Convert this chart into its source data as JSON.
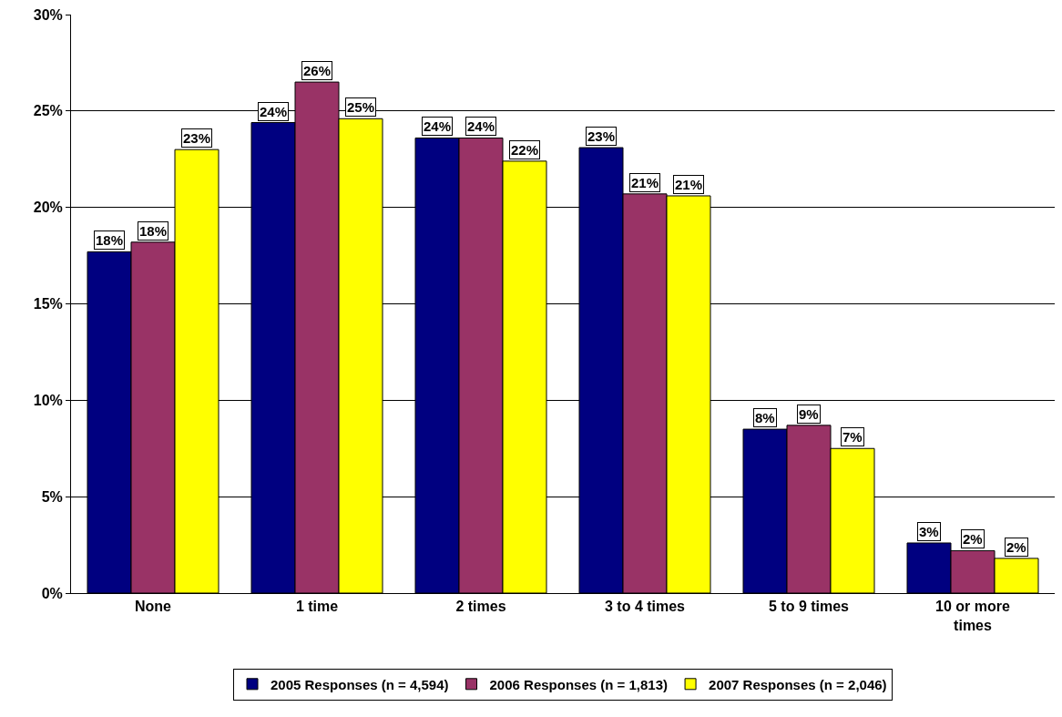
{
  "chart_data": {
    "type": "bar",
    "categories": [
      "None",
      "1 time",
      "2 times",
      "3 to 4 times",
      "5 to 9 times",
      "10 or more times"
    ],
    "series": [
      {
        "name": "2005 Responses (n = 4,594)",
        "color": "#000080",
        "values": [
          17.7,
          24.4,
          23.6,
          23.1,
          8.5,
          2.6
        ],
        "value_labels": [
          "18%",
          "24%",
          "24%",
          "23%",
          "8%",
          "3%"
        ]
      },
      {
        "name": "2006 Responses (n = 1,813)",
        "color": "#993366",
        "values": [
          18.2,
          26.5,
          23.6,
          20.7,
          8.7,
          2.2
        ],
        "value_labels": [
          "18%",
          "26%",
          "24%",
          "21%",
          "9%",
          "2%"
        ]
      },
      {
        "name": "2007 Responses (n = 2,046)",
        "color": "#ffff00",
        "values": [
          23.0,
          24.6,
          22.4,
          20.6,
          7.5,
          1.8
        ],
        "value_labels": [
          "23%",
          "25%",
          "22%",
          "21%",
          "7%",
          "2%"
        ]
      }
    ],
    "ylim": [
      0,
      30
    ],
    "yticks": [
      {
        "value": 0,
        "label": "0%"
      },
      {
        "value": 5,
        "label": "5%"
      },
      {
        "value": 10,
        "label": "10%"
      },
      {
        "value": 15,
        "label": "15%"
      },
      {
        "value": 20,
        "label": "20%"
      },
      {
        "value": 25,
        "label": "25%"
      },
      {
        "value": 30,
        "label": "30%"
      }
    ],
    "grid": "y",
    "legend": "bottom"
  }
}
